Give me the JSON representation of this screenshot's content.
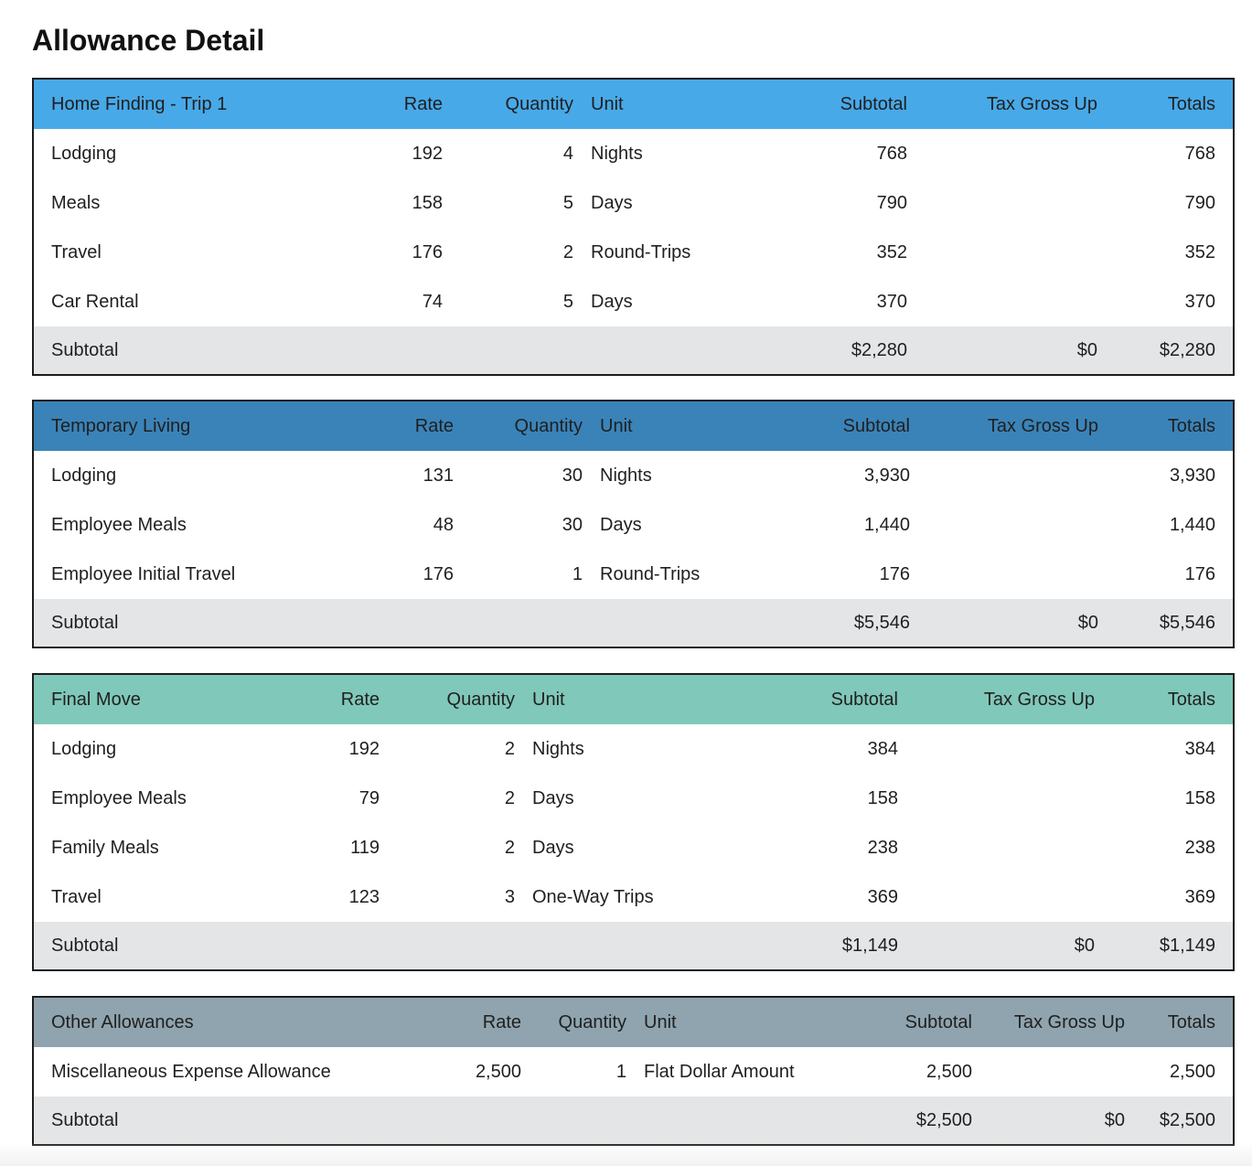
{
  "title": "Allowance Detail",
  "colors": {
    "home_header": "#48a9e8",
    "temp_header": "#3a83b8",
    "final_header": "#80c8b9",
    "other_header": "#8fa4ae",
    "subtotal_row": "#e4e5e7"
  },
  "columns": {
    "rate": "Rate",
    "quantity": "Quantity",
    "unit": "Unit",
    "subtotal": "Subtotal",
    "tax": "Tax Gross Up",
    "totals": "Totals"
  },
  "sections": [
    {
      "name": "Home Finding - Trip 1",
      "rows": [
        {
          "label": "Lodging",
          "rate": "192",
          "qty": "4",
          "unit": "Nights",
          "subtotal": "768",
          "tax": "",
          "total": "768"
        },
        {
          "label": "Meals",
          "rate": "158",
          "qty": "5",
          "unit": "Days",
          "subtotal": "790",
          "tax": "",
          "total": "790"
        },
        {
          "label": "Travel",
          "rate": "176",
          "qty": "2",
          "unit": "Round-Trips",
          "subtotal": "352",
          "tax": "",
          "total": "352"
        },
        {
          "label": "Car Rental",
          "rate": "74",
          "qty": "5",
          "unit": "Days",
          "subtotal": "370",
          "tax": "",
          "total": "370"
        }
      ],
      "summary": {
        "label": "Subtotal",
        "subtotal": "$2,280",
        "tax": "$0",
        "total": "$2,280"
      }
    },
    {
      "name": "Temporary Living",
      "rows": [
        {
          "label": "Lodging",
          "rate": "131",
          "qty": "30",
          "unit": "Nights",
          "subtotal": "3,930",
          "tax": "",
          "total": "3,930"
        },
        {
          "label": "Employee Meals",
          "rate": "48",
          "qty": "30",
          "unit": "Days",
          "subtotal": "1,440",
          "tax": "",
          "total": "1,440"
        },
        {
          "label": "Employee Initial Travel",
          "rate": "176",
          "qty": "1",
          "unit": "Round-Trips",
          "subtotal": "176",
          "tax": "",
          "total": "176"
        }
      ],
      "summary": {
        "label": "Subtotal",
        "subtotal": "$5,546",
        "tax": "$0",
        "total": "$5,546"
      }
    },
    {
      "name": "Final Move",
      "rows": [
        {
          "label": "Lodging",
          "rate": "192",
          "qty": "2",
          "unit": "Nights",
          "subtotal": "384",
          "tax": "",
          "total": "384"
        },
        {
          "label": "Employee Meals",
          "rate": "79",
          "qty": "2",
          "unit": "Days",
          "subtotal": "158",
          "tax": "",
          "total": "158"
        },
        {
          "label": "Family Meals",
          "rate": "119",
          "qty": "2",
          "unit": "Days",
          "subtotal": "238",
          "tax": "",
          "total": "238"
        },
        {
          "label": "Travel",
          "rate": "123",
          "qty": "3",
          "unit": "One-Way Trips",
          "subtotal": "369",
          "tax": "",
          "total": "369"
        }
      ],
      "summary": {
        "label": "Subtotal",
        "subtotal": "$1,149",
        "tax": "$0",
        "total": "$1,149"
      }
    },
    {
      "name": "Other Allowances",
      "rows": [
        {
          "label": "Miscellaneous Expense Allowance",
          "rate": "2,500",
          "qty": "1",
          "unit": "Flat Dollar Amount",
          "subtotal": "2,500",
          "tax": "",
          "total": "2,500"
        }
      ],
      "summary": {
        "label": "Subtotal",
        "subtotal": "$2,500",
        "tax": "$0",
        "total": "$2,500"
      }
    }
  ]
}
